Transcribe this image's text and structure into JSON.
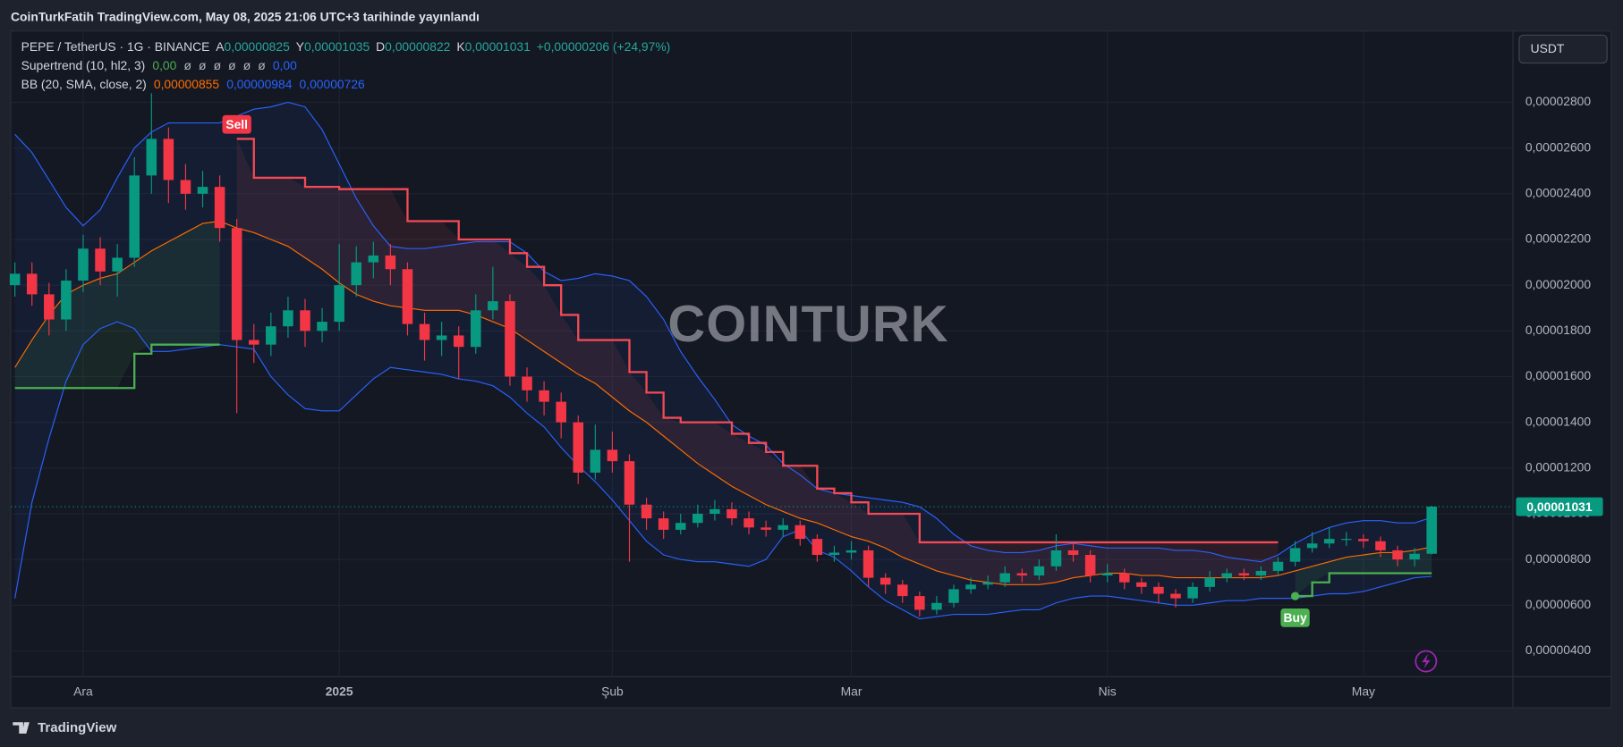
{
  "header": {
    "title": "CoinTurkFatih TradingView.com, May 08, 2025 21:06 UTC+3 tarihinde yayınlandı"
  },
  "currency": "USDT",
  "watermark": "COINTURK",
  "footer": {
    "brand": "TradingView"
  },
  "chart_data": {
    "type": "candlestick",
    "legend": {
      "symbol": "PEPE / TetherUS · 1G · BINANCE",
      "ohlc": [
        {
          "key": "A",
          "value": "0,00000825"
        },
        {
          "key": "Y",
          "value": "0,00001035"
        },
        {
          "key": "D",
          "value": "0,00000822"
        },
        {
          "key": "K",
          "value": "0,00001031"
        }
      ],
      "change": "+0,00000206 (+24,97%)"
    },
    "categories": [
      null,
      null,
      null,
      null,
      "Ara",
      null,
      null,
      null,
      null,
      null,
      null,
      null,
      null,
      null,
      null,
      null,
      null,
      null,
      null,
      "2025",
      null,
      null,
      null,
      null,
      null,
      null,
      null,
      null,
      null,
      null,
      null,
      null,
      null,
      null,
      null,
      "Şub",
      null,
      null,
      null,
      null,
      null,
      null,
      null,
      null,
      null,
      null,
      null,
      null,
      null,
      "Mar",
      null,
      null,
      null,
      null,
      null,
      null,
      null,
      null,
      null,
      null,
      null,
      null,
      null,
      null,
      "Nis",
      null,
      null,
      null,
      null,
      null,
      null,
      null,
      null,
      null,
      null,
      null,
      null,
      null,
      null,
      "May",
      null,
      null,
      null,
      null
    ],
    "open": [
      2e-05,
      2.05e-05,
      1.96e-05,
      1.85e-05,
      2.02e-05,
      2.16e-05,
      2.06e-05,
      2.12e-05,
      2.48e-05,
      2.64e-05,
      2.46e-05,
      2.4e-05,
      2.43e-05,
      2.25e-05,
      1.76e-05,
      1.74e-05,
      1.82e-05,
      1.89e-05,
      1.8e-05,
      1.84e-05,
      2e-05,
      2.1e-05,
      2.13e-05,
      2.07e-05,
      1.83e-05,
      1.76e-05,
      1.78e-05,
      1.73e-05,
      1.89e-05,
      1.93e-05,
      1.6e-05,
      1.54e-05,
      1.49e-05,
      1.4e-05,
      1.18e-05,
      1.28e-05,
      1.23e-05,
      1.04e-05,
      9.8e-06,
      9.3e-06,
      9.6e-06,
      1e-05,
      1.02e-05,
      9.8e-06,
      9.4e-06,
      9.3e-06,
      9.5e-06,
      8.9e-06,
      8.2e-06,
      8.3e-06,
      8.4e-06,
      7.2e-06,
      6.9e-06,
      6.4e-06,
      5.8e-06,
      6.1e-06,
      6.7e-06,
      6.9e-06,
      7e-06,
      7.4e-06,
      7.3e-06,
      7.7e-06,
      8.4e-06,
      8.2e-06,
      7.3e-06,
      7.4e-06,
      7e-06,
      6.8e-06,
      6.5e-06,
      6.3e-06,
      6.8e-06,
      7.2e-06,
      7.4e-06,
      7.3e-06,
      7.5e-06,
      7.9e-06,
      8.5e-06,
      8.7e-06,
      8.9e-06,
      8.9e-06,
      8.8e-06,
      8.4e-06,
      8e-06,
      8.25e-06
    ],
    "high": [
      2.1e-05,
      2.1e-05,
      2.01e-05,
      2.07e-05,
      2.22e-05,
      2.21e-05,
      2.18e-05,
      2.56e-05,
      2.84e-05,
      2.69e-05,
      2.53e-05,
      2.5e-05,
      2.48e-05,
      2.29e-05,
      1.83e-05,
      1.88e-05,
      1.95e-05,
      1.94e-05,
      1.9e-05,
      2.18e-05,
      2.17e-05,
      2.19e-05,
      2.18e-05,
      2.1e-05,
      1.88e-05,
      1.84e-05,
      1.82e-05,
      1.96e-05,
      2.08e-05,
      1.96e-05,
      1.64e-05,
      1.58e-05,
      1.53e-05,
      1.43e-05,
      1.39e-05,
      1.36e-05,
      1.26e-05,
      1.07e-05,
      1.01e-05,
      1e-05,
      1.04e-05,
      1.06e-05,
      1.05e-05,
      1.01e-05,
      9.7e-06,
      9.8e-06,
      9.7e-06,
      9.1e-06,
      8.6e-06,
      8.8e-06,
      8.6e-06,
      7.4e-06,
      7.1e-06,
      6.6e-06,
      6.4e-06,
      6.9e-06,
      7.2e-06,
      7.3e-06,
      7.7e-06,
      7.6e-06,
      8e-06,
      9.1e-06,
      8.7e-06,
      8.4e-06,
      7.8e-06,
      7.6e-06,
      7.2e-06,
      7e-06,
      6.7e-06,
      7e-06,
      7.5e-06,
      7.6e-06,
      7.6e-06,
      7.7e-06,
      8.1e-06,
      8.8e-06,
      9.2e-06,
      9.4e-06,
      9.2e-06,
      9.1e-06,
      9e-06,
      8.6e-06,
      8.5e-06,
      1.035e-05
    ],
    "low": [
      1.95e-05,
      1.91e-05,
      1.78e-05,
      1.8e-05,
      1.97e-05,
      2e-05,
      1.95e-05,
      2.08e-05,
      2.4e-05,
      2.36e-05,
      2.33e-05,
      2.34e-05,
      2.19e-05,
      1.44e-05,
      1.66e-05,
      1.69e-05,
      1.77e-05,
      1.73e-05,
      1.75e-05,
      1.8e-05,
      1.95e-05,
      2.03e-05,
      2e-05,
      1.78e-05,
      1.67e-05,
      1.69e-05,
      1.59e-05,
      1.7e-05,
      1.85e-05,
      1.56e-05,
      1.49e-05,
      1.43e-05,
      1.33e-05,
      1.13e-05,
      1.15e-05,
      1.18e-05,
      7.9e-06,
      9.3e-06,
      8.9e-06,
      9.1e-06,
      9.4e-06,
      9.7e-06,
      9.5e-06,
      9.1e-06,
      9e-06,
      9e-06,
      8.6e-06,
      7.9e-06,
      7.9e-06,
      8e-06,
      6.8e-06,
      6.5e-06,
      6.1e-06,
      5.5e-06,
      5.6e-06,
      5.9e-06,
      6.5e-06,
      6.7e-06,
      6.8e-06,
      7e-06,
      7.1e-06,
      7.5e-06,
      7.9e-06,
      7e-06,
      7e-06,
      6.7e-06,
      6.5e-06,
      6.1e-06,
      5.9e-06,
      6.1e-06,
      6.6e-06,
      7e-06,
      7.1e-06,
      7.1e-06,
      7.3e-06,
      7.7e-06,
      8.3e-06,
      8.5e-06,
      8.6e-06,
      8.5e-06,
      8.1e-06,
      7.7e-06,
      7.7e-06,
      8.22e-06
    ],
    "close": [
      2.05e-05,
      1.96e-05,
      1.85e-05,
      2.02e-05,
      2.16e-05,
      2.06e-05,
      2.12e-05,
      2.48e-05,
      2.64e-05,
      2.46e-05,
      2.4e-05,
      2.43e-05,
      2.25e-05,
      1.76e-05,
      1.74e-05,
      1.82e-05,
      1.89e-05,
      1.8e-05,
      1.84e-05,
      2e-05,
      2.1e-05,
      2.13e-05,
      2.07e-05,
      1.83e-05,
      1.76e-05,
      1.78e-05,
      1.73e-05,
      1.89e-05,
      1.93e-05,
      1.6e-05,
      1.54e-05,
      1.49e-05,
      1.4e-05,
      1.18e-05,
      1.28e-05,
      1.23e-05,
      1.04e-05,
      9.8e-06,
      9.3e-06,
      9.6e-06,
      1e-05,
      1.02e-05,
      9.8e-06,
      9.4e-06,
      9.3e-06,
      9.5e-06,
      8.9e-06,
      8.2e-06,
      8.3e-06,
      8.4e-06,
      7.2e-06,
      6.9e-06,
      6.4e-06,
      5.8e-06,
      6.1e-06,
      6.7e-06,
      6.9e-06,
      7e-06,
      7.4e-06,
      7.3e-06,
      7.7e-06,
      8.4e-06,
      8.2e-06,
      7.3e-06,
      7.4e-06,
      7e-06,
      6.8e-06,
      6.5e-06,
      6.3e-06,
      6.8e-06,
      7.2e-06,
      7.4e-06,
      7.3e-06,
      7.5e-06,
      7.9e-06,
      8.5e-06,
      8.7e-06,
      8.9e-06,
      8.9e-06,
      8.8e-06,
      8.4e-06,
      8e-06,
      8.25e-06,
      1.031e-05
    ],
    "up_color": "#089981",
    "down_color": "#f23645",
    "indicators": [
      {
        "name": "Supertrend (10, hl2, 3)",
        "legend_values": [
          "0,00",
          "ø",
          "ø",
          "ø",
          "ø",
          "ø",
          "ø",
          "0,00"
        ],
        "signals": {
          "sell": "Sell",
          "buy": "Buy"
        },
        "lines": [
          {
            "color": "#4caf50",
            "values": [
              1.55e-05,
              1.55e-05,
              1.55e-05,
              1.55e-05,
              1.55e-05,
              1.55e-05,
              1.55e-05,
              1.7e-05,
              1.74e-05,
              1.74e-05,
              1.74e-05,
              1.74e-05,
              1.74e-05,
              null,
              null,
              null,
              null,
              null,
              null,
              null,
              null,
              null,
              null,
              null,
              null,
              null,
              null,
              null,
              null,
              null,
              null,
              null,
              null,
              null,
              null,
              null,
              null,
              null,
              null,
              null,
              null,
              null,
              null,
              null,
              null,
              null,
              null,
              null,
              null,
              null,
              null,
              null,
              null,
              null,
              null,
              null,
              null,
              null,
              null,
              null,
              null,
              null,
              null,
              null,
              null,
              null,
              null,
              null,
              null,
              null,
              null,
              null,
              null,
              null,
              null,
              6.4e-06,
              7e-06,
              7.4e-06,
              7.4e-06,
              7.4e-06,
              7.4e-06,
              7.4e-06,
              7.4e-06,
              7.4e-06
            ]
          },
          {
            "color": "#f44a55",
            "values": [
              null,
              null,
              null,
              null,
              null,
              null,
              null,
              null,
              null,
              null,
              null,
              null,
              null,
              2.64e-05,
              2.47e-05,
              2.47e-05,
              2.47e-05,
              2.43e-05,
              2.43e-05,
              2.42e-05,
              2.42e-05,
              2.42e-05,
              2.42e-05,
              2.28e-05,
              2.28e-05,
              2.28e-05,
              2.2e-05,
              2.2e-05,
              2.2e-05,
              2.14e-05,
              2.08e-05,
              2e-05,
              1.87e-05,
              1.76e-05,
              1.76e-05,
              1.76e-05,
              1.62e-05,
              1.53e-05,
              1.42e-05,
              1.4e-05,
              1.4e-05,
              1.4e-05,
              1.35e-05,
              1.31e-05,
              1.27e-05,
              1.21e-05,
              1.21e-05,
              1.11e-05,
              1.09e-05,
              1.05e-05,
              1e-05,
              1e-05,
              1e-05,
              8.75e-06,
              8.75e-06,
              8.75e-06,
              8.75e-06,
              8.75e-06,
              8.75e-06,
              8.75e-06,
              8.75e-06,
              8.75e-06,
              8.75e-06,
              8.75e-06,
              8.75e-06,
              8.75e-06,
              8.75e-06,
              8.75e-06,
              8.75e-06,
              8.75e-06,
              8.75e-06,
              8.75e-06,
              8.75e-06,
              8.75e-06,
              8.75e-06,
              null,
              null,
              null,
              null,
              null,
              null,
              null,
              null,
              null
            ]
          }
        ]
      },
      {
        "name": "BB (20, SMA, close, 2)",
        "lines": [
          {
            "color": "#ff6d00",
            "value_label": "0,00000855",
            "values": [
              1.64e-05,
              1.76e-05,
              1.87e-05,
              1.96e-05,
              2e-05,
              2.03e-05,
              2.05e-05,
              2.1e-05,
              2.15e-05,
              2.19e-05,
              2.23e-05,
              2.27e-05,
              2.28e-05,
              2.25e-05,
              2.23e-05,
              2.2e-05,
              2.17e-05,
              2.12e-05,
              2.07e-05,
              2.01e-05,
              1.96e-05,
              1.93e-05,
              1.91e-05,
              1.9e-05,
              1.89e-05,
              1.89e-05,
              1.89e-05,
              1.87e-05,
              1.84e-05,
              1.81e-05,
              1.76e-05,
              1.71e-05,
              1.66e-05,
              1.61e-05,
              1.57e-05,
              1.51e-05,
              1.45e-05,
              1.4e-05,
              1.34e-05,
              1.28e-05,
              1.22e-05,
              1.17e-05,
              1.12e-05,
              1.08e-05,
              1.04e-05,
              1.01e-05,
              9.8e-06,
              9.6e-06,
              9.3e-06,
              9e-06,
              8.8e-06,
              8.5e-06,
              8.1e-06,
              7.8e-06,
              7.5e-06,
              7.3e-06,
              7.1e-06,
              7e-06,
              6.9e-06,
              6.9e-06,
              6.9e-06,
              7e-06,
              7.2e-06,
              7.3e-06,
              7.4e-06,
              7.4e-06,
              7.3e-06,
              7.3e-06,
              7.2e-06,
              7.2e-06,
              7.2e-06,
              7.2e-06,
              7.2e-06,
              7.2e-06,
              7.3e-06,
              7.5e-06,
              7.7e-06,
              7.9e-06,
              8.1e-06,
              8.2e-06,
              8.3e-06,
              8.3e-06,
              8.4e-06,
              8.55e-06
            ]
          },
          {
            "color": "#2962ff",
            "value_label": "0,00000984",
            "values": [
              2.66e-05,
              2.58e-05,
              2.46e-05,
              2.34e-05,
              2.26e-05,
              2.33e-05,
              2.47e-05,
              2.6e-05,
              2.67e-05,
              2.71e-05,
              2.71e-05,
              2.71e-05,
              2.71e-05,
              2.74e-05,
              2.77e-05,
              2.78e-05,
              2.8e-05,
              2.78e-05,
              2.68e-05,
              2.53e-05,
              2.38e-05,
              2.26e-05,
              2.17e-05,
              2.16e-05,
              2.16e-05,
              2.17e-05,
              2.18e-05,
              2.19e-05,
              2.19e-05,
              2.19e-05,
              2.14e-05,
              2.06e-05,
              2.02e-05,
              2.03e-05,
              2.05e-05,
              2.04e-05,
              2.02e-05,
              1.95e-05,
              1.85e-05,
              1.71e-05,
              1.6e-05,
              1.5e-05,
              1.39e-05,
              1.34e-05,
              1.3e-05,
              1.22e-05,
              1.17e-05,
              1.11e-05,
              1.09e-05,
              1.08e-05,
              1.07e-05,
              1.06e-05,
              1.05e-05,
              1.03e-05,
              9.8e-06,
              9.1e-06,
              8.6e-06,
              8.4e-06,
              8.3e-06,
              8.3e-06,
              8.4e-06,
              8.6e-06,
              8.7e-06,
              8.6e-06,
              8.5e-06,
              8.5e-06,
              8.5e-06,
              8.5e-06,
              8.4e-06,
              8.4e-06,
              8.3e-06,
              8.1e-06,
              8e-06,
              7.9e-06,
              8.2e-06,
              8.7e-06,
              9.1e-06,
              9.4e-06,
              9.6e-06,
              9.7e-06,
              9.7e-06,
              9.6e-06,
              9.6e-06,
              9.84e-06
            ]
          },
          {
            "color": "#2962ff",
            "value_label": "0,00000726",
            "values": [
              6.3e-06,
              1.05e-05,
              1.33e-05,
              1.58e-05,
              1.74e-05,
              1.81e-05,
              1.84e-05,
              1.81e-05,
              1.71e-05,
              1.71e-05,
              1.72e-05,
              1.73e-05,
              1.74e-05,
              1.73e-05,
              1.72e-05,
              1.6e-05,
              1.52e-05,
              1.46e-05,
              1.45e-05,
              1.45e-05,
              1.52e-05,
              1.59e-05,
              1.64e-05,
              1.63e-05,
              1.62e-05,
              1.61e-05,
              1.59e-05,
              1.58e-05,
              1.56e-05,
              1.51e-05,
              1.44e-05,
              1.38e-05,
              1.29e-05,
              1.21e-05,
              1.14e-05,
              1.06e-05,
              9.7e-06,
              8.8e-06,
              8.2e-06,
              8e-06,
              7.9e-06,
              7.9e-06,
              7.8e-06,
              7.7e-06,
              8e-06,
              9e-06,
              9.3e-06,
              8.4e-06,
              8.1e-06,
              7.5e-06,
              6.8e-06,
              6.2e-06,
              5.8e-06,
              5.4e-06,
              5.5e-06,
              5.6e-06,
              5.6e-06,
              5.6e-06,
              5.7e-06,
              5.8e-06,
              5.8e-06,
              6.1e-06,
              6.3e-06,
              6.4e-06,
              6.4e-06,
              6.3e-06,
              6.2e-06,
              6.1e-06,
              6e-06,
              6e-06,
              6.1e-06,
              6.2e-06,
              6.2e-06,
              6.3e-06,
              6.3e-06,
              6.3e-06,
              6.4e-06,
              6.5e-06,
              6.5e-06,
              6.6e-06,
              6.8e-06,
              7e-06,
              7.2e-06,
              7.26e-06
            ]
          }
        ]
      }
    ],
    "ylim": [
      2.87e-06,
      3.112e-05
    ],
    "yticks": [
      {
        "value": 4e-06,
        "label": "0,00000400"
      },
      {
        "value": 6e-06,
        "label": "0,00000600"
      },
      {
        "value": 8e-06,
        "label": "0,00000800"
      },
      {
        "value": 1e-05,
        "label": "0,00001000"
      },
      {
        "value": 1.2e-05,
        "label": "0,00001200"
      },
      {
        "value": 1.4e-05,
        "label": "0,00001400"
      },
      {
        "value": 1.6e-05,
        "label": "0,00001600"
      },
      {
        "value": 1.8e-05,
        "label": "0,00001800"
      },
      {
        "value": 2e-05,
        "label": "0,00002000"
      },
      {
        "value": 2.2e-05,
        "label": "0,00002200"
      },
      {
        "value": 2.4e-05,
        "label": "0,00002400"
      },
      {
        "value": 2.6e-05,
        "label": "0,00002600"
      },
      {
        "value": 2.8e-05,
        "label": "0,00002800"
      }
    ],
    "price_label": {
      "value": 1.031e-05,
      "label": "0,00001031"
    },
    "grid": true
  }
}
